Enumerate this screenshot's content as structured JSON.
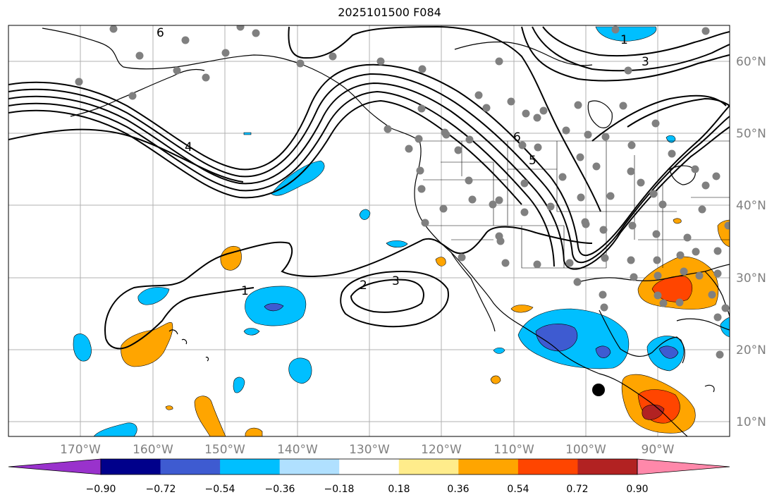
{
  "title": "2025101500 F084",
  "map": {
    "lon_labels": [
      "170°W",
      "160°W",
      "150°W",
      "140°W",
      "130°W",
      "120°W",
      "110°W",
      "100°W",
      "90°W"
    ],
    "lat_labels": [
      "60°N",
      "50°N",
      "40°N",
      "30°N",
      "20°N",
      "10°N"
    ],
    "contour_labels": [
      "6",
      "1",
      "3",
      "4",
      "6",
      "5",
      "2",
      "3",
      "1"
    ],
    "colors": {
      "neg_high": "#3e5bd1",
      "neg_mid": "#00bfff",
      "pos_mid": "#ffa500",
      "pos_high": "#ff4500",
      "pos_top": "#b22222",
      "dots": "#808080"
    }
  },
  "colorbar": {
    "ticks": [
      "−0.90",
      "−0.72",
      "−0.54",
      "−0.36",
      "−0.18",
      "0.18",
      "0.36",
      "0.54",
      "0.72",
      "0.90"
    ],
    "colors": [
      "#9932cc",
      "#00008b",
      "#3e5bd1",
      "#00bfff",
      "#b0e0ff",
      "#ffffff",
      "#ffec8b",
      "#ffa500",
      "#ff4500",
      "#b22222",
      "#ff88aa"
    ]
  }
}
